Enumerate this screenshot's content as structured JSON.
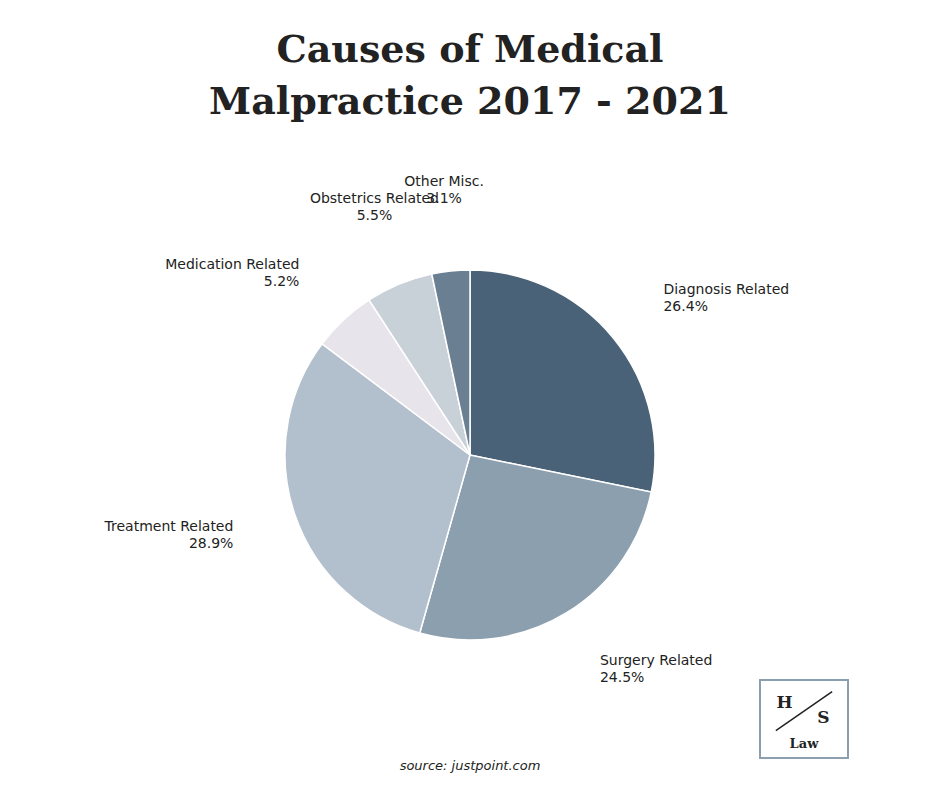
{
  "chart_data": {
    "type": "pie",
    "title": [
      "Causes of Medical",
      "Malpractice 2017 - 2021"
    ],
    "categories": [
      "Diagnosis Related",
      "Surgery Related",
      "Treatment Related",
      "Medication Related",
      "Obstetrics Related",
      "Other Misc."
    ],
    "values": [
      26.4,
      24.5,
      28.9,
      5.2,
      5.5,
      3.1
    ],
    "value_labels": [
      "26.4%",
      "24.5%",
      "28.9%",
      "5.2%",
      "5.5%",
      "3.1%"
    ],
    "colors": [
      "#4a6278",
      "#8c9faf",
      "#b2bfcc",
      "#e8e4ec",
      "#c8d0d8",
      "#6b7f92"
    ],
    "annotations": [
      "source: justpoint.com",
      "H",
      "S",
      "Law"
    ]
  }
}
